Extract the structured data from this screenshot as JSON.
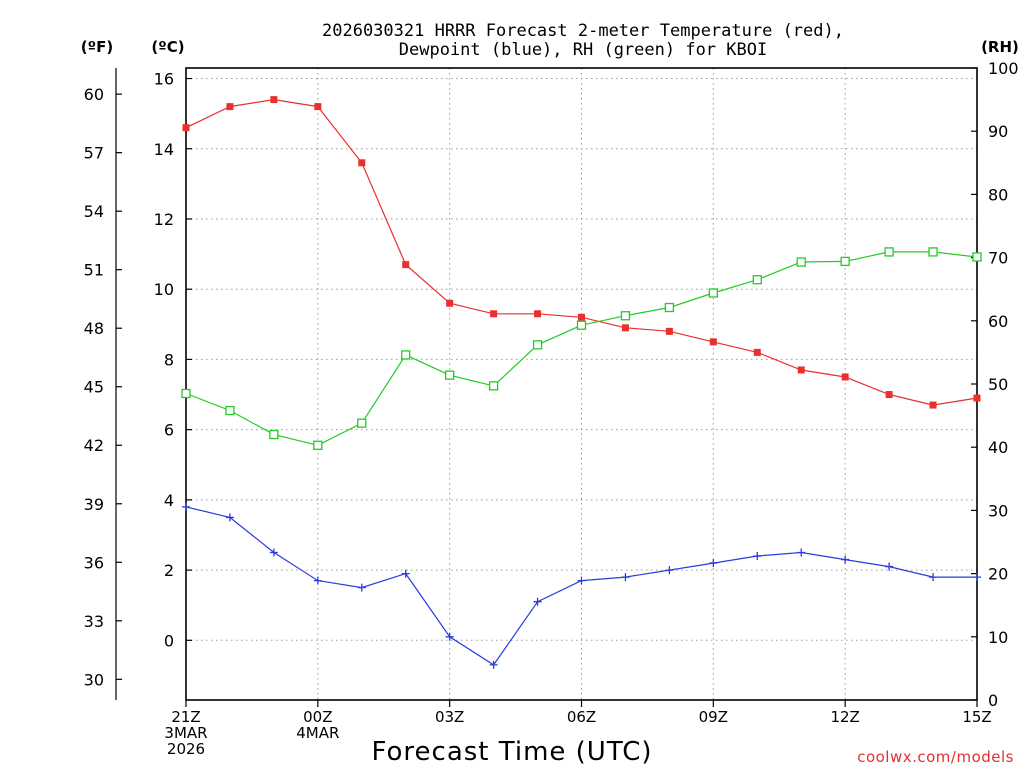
{
  "chart_data": {
    "type": "line",
    "title_line1": "2026030321 HRRR Forecast 2-meter Temperature (red),",
    "title_line2": "Dewpoint (blue), RH (green) for KBOI",
    "xlabel": "Forecast Time (UTC)",
    "watermark": "coolwx.com/models",
    "left_unit_f": "(ºF)",
    "left_unit_c": "(ºC)",
    "right_unit": "(RH)",
    "x_range": [
      0,
      18
    ],
    "celsius_range": [
      -1.7,
      16.3
    ],
    "rh_range": [
      0,
      100
    ],
    "celsius_ticks": [
      0,
      2,
      4,
      6,
      8,
      10,
      12,
      14,
      16
    ],
    "fahrenheit_ticks": [
      30,
      33,
      36,
      39,
      42,
      45,
      48,
      51,
      54,
      57,
      60
    ],
    "rh_ticks": [
      0,
      10,
      20,
      30,
      40,
      50,
      60,
      70,
      80,
      90,
      100
    ],
    "x_ticks": [
      {
        "x": 0,
        "lines": [
          "21Z",
          "3MAR",
          "2026"
        ]
      },
      {
        "x": 3,
        "lines": [
          "00Z",
          "4MAR"
        ]
      },
      {
        "x": 6,
        "lines": [
          "03Z"
        ]
      },
      {
        "x": 9,
        "lines": [
          "06Z"
        ]
      },
      {
        "x": 12,
        "lines": [
          "09Z"
        ]
      },
      {
        "x": 15,
        "lines": [
          "12Z"
        ]
      },
      {
        "x": 18,
        "lines": [
          "15Z"
        ]
      }
    ],
    "x": [
      0,
      1,
      2,
      3,
      4,
      5,
      6,
      7,
      8,
      9,
      10,
      11,
      12,
      13,
      14,
      15,
      16,
      17,
      18
    ],
    "series": [
      {
        "name": "Temperature",
        "axis": "celsius",
        "color": "#e83030",
        "marker": "filled-square",
        "values": [
          14.6,
          15.2,
          15.4,
          15.2,
          13.6,
          10.7,
          9.6,
          9.3,
          9.3,
          9.2,
          8.9,
          8.8,
          8.5,
          8.2,
          7.7,
          7.5,
          7.0,
          6.7,
          6.9
        ]
      },
      {
        "name": "Dewpoint",
        "axis": "celsius",
        "color": "#2a3ce0",
        "marker": "plus",
        "values": [
          3.8,
          3.5,
          2.5,
          1.7,
          1.5,
          1.9,
          0.1,
          -0.7,
          1.1,
          1.7,
          1.8,
          2.0,
          2.2,
          2.4,
          2.5,
          2.3,
          2.1,
          1.8,
          1.8
        ]
      },
      {
        "name": "RH",
        "axis": "rh",
        "color": "#22cc22",
        "marker": "open-square",
        "values": [
          48.5,
          45.8,
          42.0,
          40.3,
          43.8,
          54.6,
          51.4,
          49.7,
          56.2,
          59.3,
          60.8,
          62.1,
          64.4,
          66.5,
          69.3,
          69.4,
          70.9,
          70.9,
          70.1
        ]
      }
    ]
  }
}
